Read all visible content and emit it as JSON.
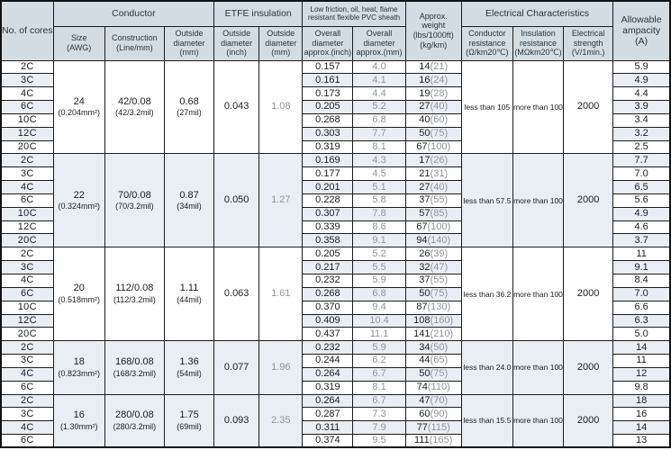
{
  "header": {
    "no_of_cores": "No. of cores",
    "conductor": "Conductor",
    "etfe": "ETFE insulation",
    "pvc_sheath": "Low friction, oil, heat, flame\nresistant flexible PVC sheath",
    "approx_weight": "Approx.\nweight\n(lbs/1000ft)\n(kg/km)",
    "electrical": "Electrical Characteristics",
    "allowable_ampacity": "Allowable\nampacity\n(A)",
    "sub": {
      "size": "Size\n(AWG)",
      "construction": "Construction\n(Line/mm)",
      "outside_dia_mm": "Outside\ndiameter\n(mm)",
      "outside_dia_inch": "Outside\ndiameter\n(inch)",
      "outside_dia_mm2": "Outside\ndiameter\n(mm)",
      "overall_dia_inch": "Overall\ndiameter\napprox.(inch)",
      "overall_dia_mm": "Overall\ndiameter\napprox.(mm)",
      "conductor_resistance": "Conductor\nresistance\n(Ω/km20℃)",
      "insulation_resistance": "Insulation\nresistance\n(MΩkm20℃)",
      "electrical_strength": "Electrical\nstrength\n(V/1min.)"
    }
  },
  "groups": [
    {
      "size": "24",
      "size_note": "(0.204mm²)",
      "construction": "42/0.08",
      "construction_note": "(42/3.2mil)",
      "outside_dia": "0.68",
      "outside_dia_note": "(27mil)",
      "etfe_inch": "0.043",
      "etfe_mm": "1.08",
      "conductor_resistance": "less than 105",
      "insulation_resistance": "more than 100",
      "electrical_strength": "2000",
      "rows": [
        {
          "cores": "2C",
          "overall_inch": "0.157",
          "overall_mm": "4.0",
          "weight_lbs": "14",
          "weight_kg": "(21)",
          "ampacity": "5.9"
        },
        {
          "cores": "3C",
          "overall_inch": "0.161",
          "overall_mm": "4.1",
          "weight_lbs": "16",
          "weight_kg": "(24)",
          "ampacity": "4.9"
        },
        {
          "cores": "4C",
          "overall_inch": "0.173",
          "overall_mm": "4.4",
          "weight_lbs": "19",
          "weight_kg": "(28)",
          "ampacity": "4.4"
        },
        {
          "cores": "6C",
          "overall_inch": "0.205",
          "overall_mm": "5.2",
          "weight_lbs": "27",
          "weight_kg": "(40)",
          "ampacity": "3.9"
        },
        {
          "cores": "10C",
          "overall_inch": "0.268",
          "overall_mm": "6.8",
          "weight_lbs": "40",
          "weight_kg": "(60)",
          "ampacity": "3.4"
        },
        {
          "cores": "12C",
          "overall_inch": "0.303",
          "overall_mm": "7.7",
          "weight_lbs": "50",
          "weight_kg": "(75)",
          "ampacity": "3.2"
        },
        {
          "cores": "20C",
          "overall_inch": "0.319",
          "overall_mm": "8.1",
          "weight_lbs": "67",
          "weight_kg": "(100)",
          "ampacity": "2.5"
        }
      ]
    },
    {
      "size": "22",
      "size_note": "(0.324mm²)",
      "construction": "70/0.08",
      "construction_note": "(70/3.2mil)",
      "outside_dia": "0.87",
      "outside_dia_note": "(34mil)",
      "etfe_inch": "0.050",
      "etfe_mm": "1.27",
      "conductor_resistance": "less than 57.5",
      "insulation_resistance": "more than 100",
      "electrical_strength": "2000",
      "rows": [
        {
          "cores": "2C",
          "overall_inch": "0.169",
          "overall_mm": "4.3",
          "weight_lbs": "17",
          "weight_kg": "(26)",
          "ampacity": "7.7"
        },
        {
          "cores": "3C",
          "overall_inch": "0.177",
          "overall_mm": "4.5",
          "weight_lbs": "21",
          "weight_kg": "(31)",
          "ampacity": "7.0"
        },
        {
          "cores": "4C",
          "overall_inch": "0.201",
          "overall_mm": "5.1",
          "weight_lbs": "27",
          "weight_kg": "(40)",
          "ampacity": "6.5"
        },
        {
          "cores": "6C",
          "overall_inch": "0.228",
          "overall_mm": "5.8",
          "weight_lbs": "37",
          "weight_kg": "(55)",
          "ampacity": "5.6"
        },
        {
          "cores": "10C",
          "overall_inch": "0.307",
          "overall_mm": "7.8",
          "weight_lbs": "57",
          "weight_kg": "(85)",
          "ampacity": "4.9"
        },
        {
          "cores": "12C",
          "overall_inch": "0.339",
          "overall_mm": "8.6",
          "weight_lbs": "67",
          "weight_kg": "(100)",
          "ampacity": "4.6"
        },
        {
          "cores": "20C",
          "overall_inch": "0.358",
          "overall_mm": "9.1",
          "weight_lbs": "94",
          "weight_kg": "(140)",
          "ampacity": "3.7"
        }
      ]
    },
    {
      "size": "20",
      "size_note": "(0.518mm²)",
      "construction": "112/0.08",
      "construction_note": "(112/3.2mil)",
      "outside_dia": "1.11",
      "outside_dia_note": "(44mil)",
      "etfe_inch": "0.063",
      "etfe_mm": "1.61",
      "conductor_resistance": "less than 36.2",
      "insulation_resistance": "more than 100",
      "electrical_strength": "2000",
      "rows": [
        {
          "cores": "2C",
          "overall_inch": "0.205",
          "overall_mm": "5.2",
          "weight_lbs": "26",
          "weight_kg": "(39)",
          "ampacity": "11"
        },
        {
          "cores": "3C",
          "overall_inch": "0.217",
          "overall_mm": "5.5",
          "weight_lbs": "32",
          "weight_kg": "(47)",
          "ampacity": "9.1"
        },
        {
          "cores": "4C",
          "overall_inch": "0.232",
          "overall_mm": "5.9",
          "weight_lbs": "37",
          "weight_kg": "(55)",
          "ampacity": "8.4"
        },
        {
          "cores": "6C",
          "overall_inch": "0.268",
          "overall_mm": "6.8",
          "weight_lbs": "50",
          "weight_kg": "(75)",
          "ampacity": "7.0"
        },
        {
          "cores": "10C",
          "overall_inch": "0.370",
          "overall_mm": "9.4",
          "weight_lbs": "87",
          "weight_kg": "(130)",
          "ampacity": "6.6"
        },
        {
          "cores": "12C",
          "overall_inch": "0.409",
          "overall_mm": "10.4",
          "weight_lbs": "108",
          "weight_kg": "(160)",
          "ampacity": "6.3"
        },
        {
          "cores": "20C",
          "overall_inch": "0.437",
          "overall_mm": "11.1",
          "weight_lbs": "141",
          "weight_kg": "(210)",
          "ampacity": "5.0"
        }
      ]
    },
    {
      "size": "18",
      "size_note": "(0.823mm²)",
      "construction": "168/0.08",
      "construction_note": "(168/3.2mil)",
      "outside_dia": "1.36",
      "outside_dia_note": "(54mil)",
      "etfe_inch": "0.077",
      "etfe_mm": "1.96",
      "conductor_resistance": "less than 24.0",
      "insulation_resistance": "more than 100",
      "electrical_strength": "2000",
      "rows": [
        {
          "cores": "2C",
          "overall_inch": "0.232",
          "overall_mm": "5.9",
          "weight_lbs": "34",
          "weight_kg": "(50)",
          "ampacity": "14"
        },
        {
          "cores": "3C",
          "overall_inch": "0.244",
          "overall_mm": "6.2",
          "weight_lbs": "44",
          "weight_kg": "(65)",
          "ampacity": "11"
        },
        {
          "cores": "4C",
          "overall_inch": "0.264",
          "overall_mm": "6.7",
          "weight_lbs": "50",
          "weight_kg": "(75)",
          "ampacity": "12"
        },
        {
          "cores": "6C",
          "overall_inch": "0.319",
          "overall_mm": "8.1",
          "weight_lbs": "74",
          "weight_kg": "(110)",
          "ampacity": "9.8"
        }
      ]
    },
    {
      "size": "16",
      "size_note": "(1.30mm²)",
      "construction": "280/0.08",
      "construction_note": "(280/3.2mil)",
      "outside_dia": "1.75",
      "outside_dia_note": "(69mil)",
      "etfe_inch": "0.093",
      "etfe_mm": "2.35",
      "conductor_resistance": "less than 15.5",
      "insulation_resistance": "more than 100",
      "electrical_strength": "2000",
      "rows": [
        {
          "cores": "2C",
          "overall_inch": "0.264",
          "overall_mm": "6.7",
          "weight_lbs": "47",
          "weight_kg": "(70)",
          "ampacity": "18"
        },
        {
          "cores": "3C",
          "overall_inch": "0.287",
          "overall_mm": "7.3",
          "weight_lbs": "60",
          "weight_kg": "(90)",
          "ampacity": "16"
        },
        {
          "cores": "4C",
          "overall_inch": "0.311",
          "overall_mm": "7.9",
          "weight_lbs": "77",
          "weight_kg": "(115)",
          "ampacity": "14"
        },
        {
          "cores": "6C",
          "overall_inch": "0.374",
          "overall_mm": "9.5",
          "weight_lbs": "111",
          "weight_kg": "(165)",
          "ampacity": "13"
        }
      ]
    }
  ]
}
